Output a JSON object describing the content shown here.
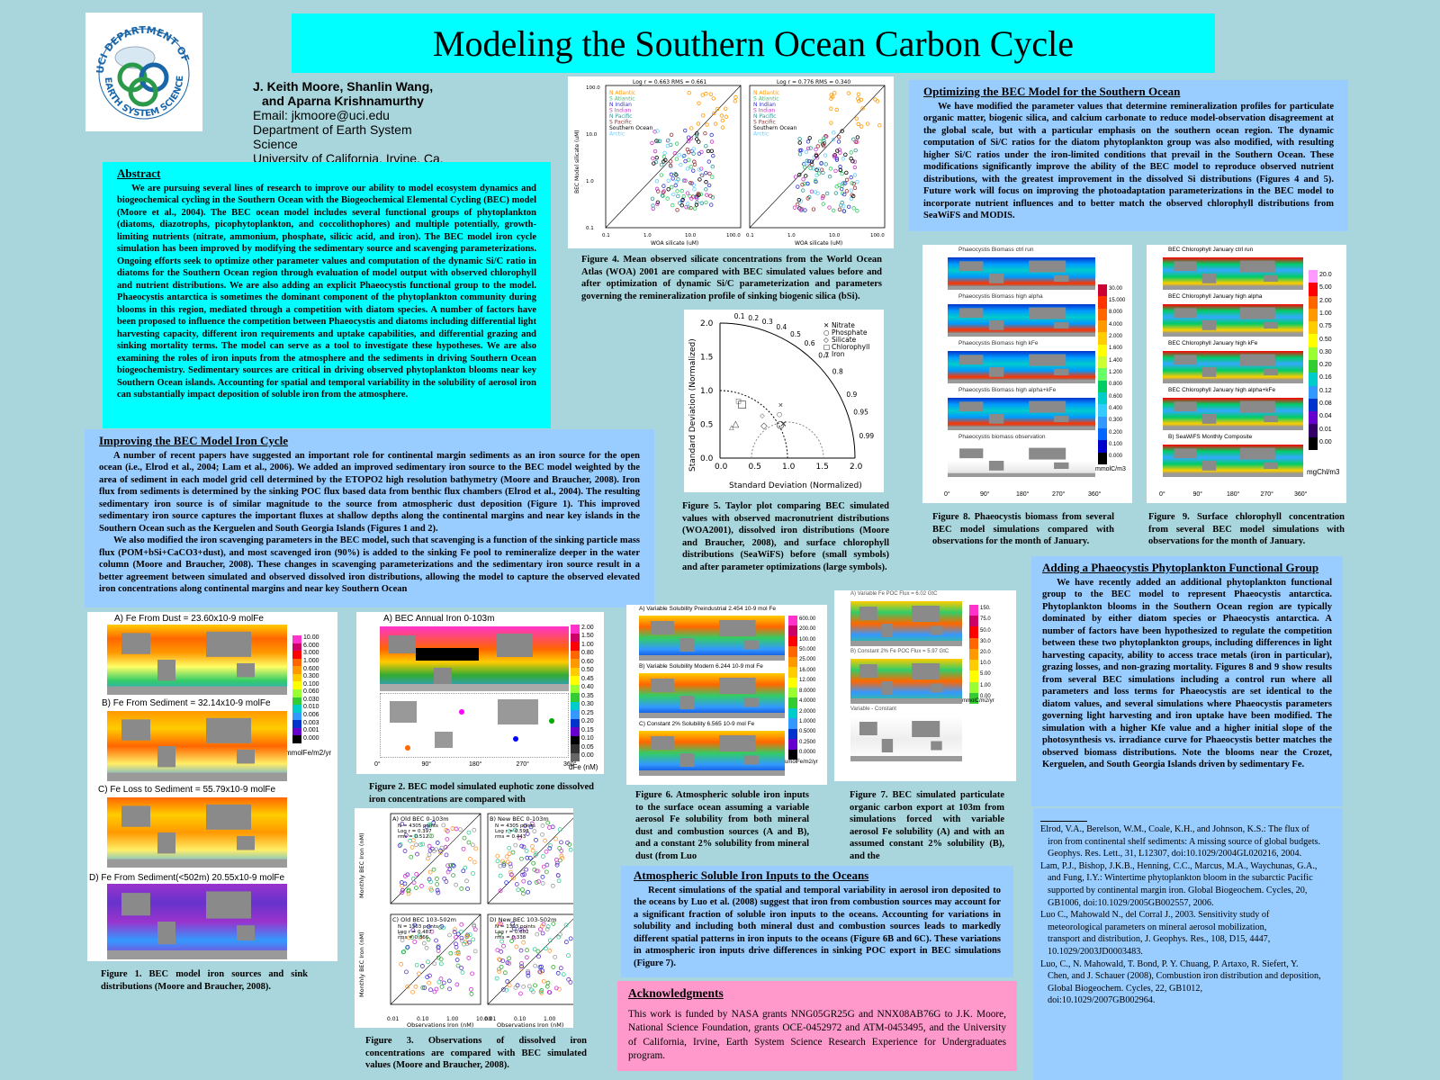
{
  "poster": {
    "title": "Modeling the Southern Ocean Carbon Cycle",
    "authors_line1": "J. Keith Moore, Shanlin Wang,",
    "authors_line2": "and Aparna Krishnamurthy",
    "email": "Email: jkmoore@uci.edu",
    "dept1": "Department of Earth System",
    "dept2": "Science",
    "univ": "University of California, Irvine, Ca.",
    "logo_text": "UCI DEPARTMENT OF EARTH SYSTEM SCIENCE"
  },
  "abstract": {
    "heading": "Abstract",
    "text": "We are pursuing several lines of research to improve our ability to model ecosystem dynamics and biogeochemical cycling in the Southern Ocean with the Biogeochemical Elemental Cycling (BEC) model (Moore et al., 2004). The BEC ocean model includes several functional groups of phytoplankton (diatoms, diazotrophs, picophytoplankton, and coccolithophores) and multiple potentially, growth-limiting nutrients (nitrate, ammonium, phosphate, silicic acid, and iron). The BEC model iron cycle simulation has been improved by modifying the sedimentary source and scavenging parameterizations. Ongoing efforts seek to optimize other parameter values and computation of the dynamic Si/C ratio in diatoms for the Southern Ocean region through evaluation of model output with observed chlorophyll and nutrient distributions. We are also adding an explicit Phaeocystis functional group to the model. Phaeocystis antarctica is sometimes the dominant component of the phytoplankton community during blooms in this region, mediated through a competition with diatom species. A number of factors have been proposed to influence the competition between Phaeocystis and diatoms including differential light harvesting capacity, different iron requirements and uptake capabilities, and differential grazing and sinking mortality terms. The model can serve as a tool to investigate these hypotheses. We are also examining the roles of iron inputs from the atmosphere and the sediments in driving Southern Ocean biogeochemistry. Sedimentary sources are critical in driving observed phytoplankton blooms near key Southern Ocean islands. Accounting for spatial and temporal variability in the solubility of aerosol iron can substantially impact deposition of soluble iron from the atmosphere."
  },
  "iron_cycle": {
    "heading": "Improving the BEC Model Iron Cycle",
    "p1": "A number of recent papers have suggested an important role for continental margin sediments as an iron source for the open ocean (i.e., Elrod et al., 2004; Lam et al., 2006). We added an improved sedimentary iron source to the BEC model weighted by the area of sediment in each model grid cell determined by the ETOPO2 high resolution bathymetry (Moore and Braucher, 2008). Iron flux from sediments is determined by the sinking POC flux based data from benthic flux chambers (Elrod et al., 2004). The resulting sedimentary iron source is of similar magnitude to the source from atmospheric dust deposition (Figure 1). This improved sedimentary iron source captures the important fluxes at shallow depths along the continental margins and near key islands in the Southern Ocean such as the Kerguelen and South Georgia Islands (Figures 1 and 2).",
    "p2": "We also modified the iron scavenging parameters in the BEC model, such that scavenging is a function of the sinking particle mass flux (POM+bSi+CaCO3+dust), and most scavenged iron (90%) is added to the sinking Fe pool to remineralize deeper in the water column (Moore and Braucher, 2008). These changes in scavenging parameterizations and the sedimentary iron source result in a better agreement between simulated and observed dissolved iron distributions, allowing the model to capture the observed elevated iron concentrations along continental margins and near key Southern Ocean"
  },
  "optimizing": {
    "heading": "Optimizing the BEC Model for the Southern Ocean",
    "text": "We have modified the parameter values that determine remineralization profiles for particulate organic matter, biogenic silica, and calcium carbonate to reduce model-observation disagreement at the global scale, but with a particular emphasis on the southern ocean region. The dynamic computation of Si/C ratios for the diatom phytoplankton group was also modified, with resulting higher Si/C ratios under the iron-limited conditions that prevail in the Southern Ocean. These modifications significantly improve the ability of the BEC model to reproduce observed nutrient distributions, with the greatest improvement in the dissolved Si distributions (Figures 4 and 5). Future work will focus on improving the photoadaptation parameterizations in the BEC model to incorporate nutrient influences and to better match the observed chlorophyll distributions from SeaWiFS and MODIS."
  },
  "phaeocystis": {
    "heading": "Adding a Phaeocystis Phytoplankton Functional Group",
    "text": "We have recently added an additional phytoplankton functional group to the BEC model to represent Phaeocystis antarctica. Phytoplankton blooms in the Southern Ocean region are typically dominated by either diatom species or Phaeocystis antarctica. A number of factors have been hypothesized to regulate the competition between these two phytoplankton groups, including differences in light harvesting capacity, ability to access trace metals (iron in particular), grazing losses, and non-grazing mortality. Figures 8 and 9 show results from several BEC simulations including a control run where all parameters and loss terms for Phaeocystis are set identical to the diatom values, and several simulations where Phaeocystis parameters governing light harvesting and iron uptake have been modified. The simulation with a higher Kfe value and a higher initial slope of the photosynthesis vs. irradiance curve for Phaeocystis better matches the observed biomass distributions. Note the blooms near the Crozet, Kerguelen, and South Georgia Islands driven by sedimentary Fe."
  },
  "atmospheric": {
    "heading": "Atmospheric Soluble Iron Inputs to the Oceans",
    "text": "Recent simulations of the spatial and temporal variability in aerosol iron deposited to the oceans by Luo et al. (2008) suggest that iron from combustion sources may account for a significant fraction of soluble iron inputs to the oceans. Accounting for variations in solubility and including both mineral dust and combustion sources leads to markedly different spatial patterns in iron inputs to the oceans (Figure 6B and 6C). These variations in atmospheric iron inputs drive differences in sinking POC export in BEC simulations (Figure 7)."
  },
  "acknowledgments": {
    "heading": "Acknowledgments",
    "text": "This work is funded by NASA grants NNG05GR25G and NNX08AB76G to J.K. Moore, National Science Foundation, grants OCE-0452972 and ATM-0453495, and the University of California, Irvine, Earth System Science Research Experience for Undergraduates program."
  },
  "captions": {
    "fig1": "Figure 1. BEC model iron sources and sink distributions (Moore and Braucher, 2008).",
    "fig2": "Figure 2. BEC model simulated euphotic zone dissolved iron concentrations are compared with",
    "fig3": "Figure 3. Observations of dissolved iron concentrations are compared with BEC simulated values (Moore and Braucher, 2008).",
    "fig4": "Figure 4. Mean observed silicate concentrations from the World Ocean Atlas (WOA) 2001 are compared with BEC simulated values before and after optimization of dynamic Si/C parameterization and parameters governing the remineralization profile of sinking biogenic silica (bSi).",
    "fig5": "Figure 5. Taylor plot comparing BEC simulated values with observed macronutrient distributions (WOA2001), dissolved iron distributions (Moore and Braucher, 2008), and surface chlorophyll distributions (SeaWiFS) before (small symbols) and after parameter optimizations (large symbols).",
    "fig6": "Figure 6. Atmospheric soluble iron inputs to the surface ocean assuming a variable aerosol Fe solubility from both mineral dust and combustion sources (A and B), and a constant 2% solubility from mineral dust (from Luo",
    "fig7": "Figure 7. BEC simulated particulate organic carbon export at 103m from simulations forced with variable aerosol Fe solubility (A) and with an assumed constant 2% solubility (B), and the",
    "fig8": "Figure 8. Phaeocystis biomass from several BEC model simulations compared with observations for the month of January.",
    "fig9": "Figure 9. Surface chlorophyll concentration from several BEC model simulations with observations for the month of January."
  },
  "fig1_panels": {
    "a": "A) Fe From Dust = 23.60x10-9 molFe",
    "b": "B) Fe From Sediment = 32.14x10-9 molFe",
    "c": "C) Fe Loss to Sediment = 55.79x10-9 molFe",
    "d": "D) Fe From Sediment(<502m) 20.55x10-9 molFe",
    "units": "mmolFe/m2/yr",
    "scale": [
      "10.00",
      "6.000",
      "3.000",
      "1.000",
      "0.600",
      "0.300",
      "0.100",
      "0.060",
      "0.030",
      "0.010",
      "0.006",
      "0.003",
      "0.001",
      "0.000"
    ]
  },
  "fig2_panels": {
    "a": "A) BEC Annual Iron 0-103m",
    "units": "dFe (nM)",
    "scale": [
      "2.00",
      "1.50",
      "1.00",
      "0.80",
      "0.60",
      "0.50",
      "0.45",
      "0.40",
      "0.35",
      "0.30",
      "0.25",
      "0.20",
      "0.15",
      "0.10",
      "0.05",
      "0.00"
    ],
    "xticks": [
      "0°",
      "90°",
      "180°",
      "270°",
      "360°"
    ]
  },
  "fig3_panels": {
    "a": "A) Old BEC 0-103m",
    "a_stats": [
      "N = 4305 points",
      "Log r = 0.397",
      "rms = 0.512"
    ],
    "b": "B) New BEC 0-103m",
    "b_stats": [
      "N = 4305 points",
      "Log r = 0.598",
      "rms = 0.443"
    ],
    "c": "C) Old BEC 103-502m",
    "c_stats": [
      "N = 1303 points",
      "Log r = 0.487",
      "rms = 0.366"
    ],
    "d": "D) New BEC 103-502m",
    "d_stats": [
      "N = 1303 points",
      "Log r = 0.602",
      "rms = 0.338"
    ],
    "ylabel": "Monthly BEC Iron (nM)",
    "xlabel": "Observations Iron (nM)",
    "ticks": [
      "0.01",
      "0.10",
      "1.00",
      "10.00"
    ]
  },
  "fig4_panels": {
    "left_stats": "Log r = 0.663     RMS = 0.661",
    "right_stats": "Log r = 0.776     RMS = 0.340",
    "legend": [
      "N Atlantic",
      "S Atlantic",
      "N Indian",
      "S Indian",
      "N Pacific",
      "S Pacific",
      "Southern Ocean",
      "Arctic"
    ],
    "ylabel": "BEC Model silicate (uM)",
    "xlabel": "WOA silicate (uM)",
    "ticks": [
      "0.1",
      "1.0",
      "10.0",
      "100.0"
    ]
  },
  "fig5_panels": {
    "legend": [
      "Nitrate",
      "Phosphate",
      "Silicate",
      "Chlorophyll",
      "Iron"
    ],
    "ylabel": "Standard Deviation (Normalized)",
    "xlabel": "Standard Deviation (Normalized)",
    "ticks": [
      "0.0",
      "0.5",
      "1.0",
      "1.5",
      "2.0"
    ],
    "corr": [
      "0.1",
      "0.2",
      "0.3",
      "0.4",
      "0.5",
      "0.6",
      "0.7",
      "0.8",
      "0.9",
      "0.95",
      "0.99"
    ]
  },
  "fig6_panels": {
    "a": "A) Variable Solubility Preindustrial 2.454 10-9 mol Fe",
    "b": "B) Variable Solubility Modern 6.244 10-9 mol Fe",
    "c": "C) Constant 2% Solubility 6.565 10-9 mol Fe",
    "units": "umolFe/m2/yr",
    "scale": [
      "600.00",
      "200.00",
      "100.00",
      "50.000",
      "25.000",
      "16.000",
      "12.000",
      "8.0000",
      "4.0000",
      "2.0000",
      "1.0000",
      "0.5000",
      "0.2500",
      "0.0000"
    ]
  },
  "fig7_panels": {
    "a": "A) Variable Fe POC Flux = 6.02 GtC",
    "b": "B) Constant 2% Fe POC Flux = 5.97 GtC",
    "c": "Variable - Constant",
    "units": "mmolC/m2/yr",
    "scale": [
      "150.",
      "75.0",
      "50.0",
      "30.0",
      "20.0",
      "10.0",
      "5.00",
      "1.00",
      "0.00"
    ]
  },
  "fig8_panels": {
    "p1": "Phaeocystis Biomass ctrl run",
    "p2": "Phaeocystis Biomass high alpha",
    "p3": "Phaeocystis Biomass high kFe",
    "p4": "Phaeocystis Biomass high alpha+kFe",
    "p5": "Phaeocystis biomass observation",
    "units": "mmolC/m3",
    "scale": [
      "30.00",
      "15.000",
      "8.000",
      "4.000",
      "2.000",
      "1.600",
      "1.400",
      "1.200",
      "0.800",
      "0.600",
      "0.400",
      "0.300",
      "0.200",
      "0.100",
      "0.000"
    ],
    "xticks": [
      "0°",
      "90°",
      "180°",
      "270°",
      "360°"
    ]
  },
  "fig9_panels": {
    "p1": "BEC Chlorophyll January  ctrl run",
    "p2": "BEC Chlorophyll January  high alpha",
    "p3": "BEC Chlorophyll January  high kFe",
    "p4": "BEC Chlorophyll January  high alpha+kFe",
    "p5": "B) SeaWiFS Monthly Composite",
    "units": "mgChl/m3",
    "scale": [
      "20.0",
      "5.00",
      "2.00",
      "1.00",
      "0.75",
      "0.50",
      "0.30",
      "0.20",
      "0.16",
      "0.12",
      "0.08",
      "0.04",
      "0.01",
      "0.00"
    ],
    "xticks": [
      "0°",
      "90°",
      "180°",
      "270°",
      "360°"
    ]
  },
  "references": [
    "Elrod, V.A., Berelson, W.M., Coale, K.H., and Johnson, K.S.: The flux of",
    "iron from continental shelf sediments: A missing source of global budgets.",
    "Geophys. Res. Lett., 31, L12307, doi:10.1029/2004GL020216, 2004.",
    "Lam, P.J., Bishop, J.K.B., Henning, C.C., Marcus, M.A., Waychunas, G.A.,",
    "and Fung, I.Y.: Wintertime phytoplankton bloom in the subarctic Pacific",
    "supported by continental margin iron. Global Biogeochem. Cycles, 20,",
    "GB1006, doi:10.1029/2005GB002557, 2006.",
    "Luo C., Mahowald N., del Corral J., 2003. Sensitivity study of",
    "meteorological parameters on mineral aerosol mobilization,",
    "transport and distribution, J. Geophys. Res., 108, D15, 4447,",
    "10.1029/2003JD0003483.",
    "Luo, C., N. Mahowald, T. Bond, P. Y. Chuang, P. Artaxo, R. Siefert, Y.",
    "Chen, and J. Schauer (2008), Combustion iron distribution and deposition,",
    "Global Biogeochem. Cycles, 22, GB1012,",
    "doi:10.1029/2007GB002964."
  ]
}
